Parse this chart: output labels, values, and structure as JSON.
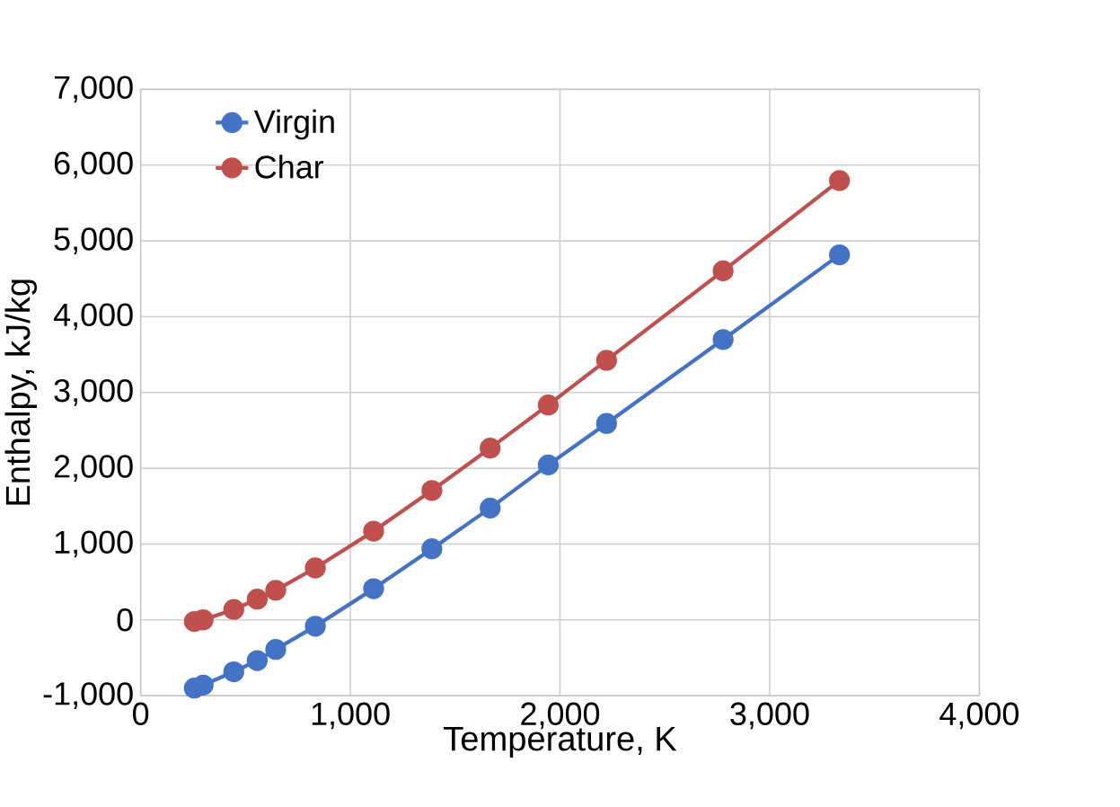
{
  "chart_data": {
    "type": "line",
    "xlabel": "Temperature, K",
    "ylabel": "Enthalpy, kJ/kg",
    "x": [
      256,
      298,
      444,
      556,
      644,
      833,
      1111,
      1389,
      1667,
      1944,
      2222,
      2778,
      3333
    ],
    "series": [
      {
        "name": "Virgin",
        "color": "#4472c4",
        "values": [
          -900,
          -860,
          -685,
          -537,
          -390,
          -84,
          411,
          938,
          1475,
          2044,
          2592,
          3699,
          4816
        ]
      },
      {
        "name": "Char",
        "color": "#c0504d",
        "values": [
          -21,
          0,
          137,
          274,
          390,
          685,
          1170,
          1707,
          2266,
          2835,
          3425,
          4605,
          5796
        ]
      }
    ],
    "xlim": [
      0,
      4000
    ],
    "xticks": [
      {
        "value": 0,
        "label": "0"
      },
      {
        "value": 1000,
        "label": "1,000"
      },
      {
        "value": 2000,
        "label": "2,000"
      },
      {
        "value": 3000,
        "label": "3,000"
      },
      {
        "value": 4000,
        "label": "4,000"
      }
    ],
    "ylim": [
      -1000,
      7000
    ],
    "yticks": [
      {
        "value": -1000,
        "label": "-1,000"
      },
      {
        "value": 0,
        "label": "0"
      },
      {
        "value": 1000,
        "label": "1,000"
      },
      {
        "value": 2000,
        "label": "2,000"
      },
      {
        "value": 3000,
        "label": "3,000"
      },
      {
        "value": 4000,
        "label": "4,000"
      },
      {
        "value": 5000,
        "label": "5,000"
      },
      {
        "value": 6000,
        "label": "6,000"
      },
      {
        "value": 7000,
        "label": "7,000"
      }
    ],
    "grid": true,
    "legend": "top left",
    "marker": "circle",
    "line_style": "solid"
  }
}
